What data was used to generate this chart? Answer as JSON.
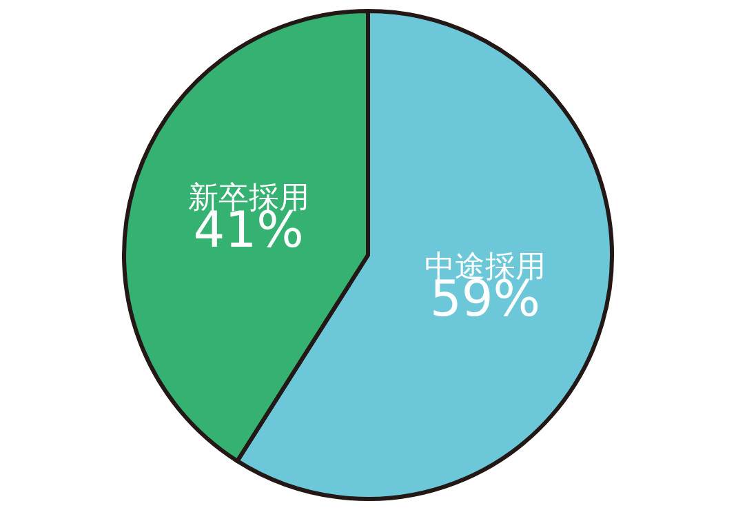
{
  "chart_data": {
    "type": "pie",
    "categories": [
      "中途採用",
      "新卒採用"
    ],
    "values": [
      59,
      41
    ],
    "colors": [
      "#6cc8d9",
      "#35b172"
    ],
    "value_labels": [
      "59%",
      "41%"
    ],
    "legend": false
  }
}
